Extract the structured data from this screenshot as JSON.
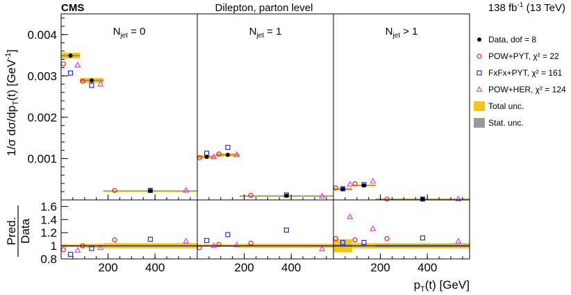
{
  "chart_data": {
    "type": "scatter",
    "header": {
      "experiment": "CMS",
      "title": "Dilepton, parton level",
      "lumi_value": "138 fb",
      "lumi_exp": "-1",
      "energy": "(13 TeV)"
    },
    "ylabel_main": "1/σ dσ/dp_T(t) [GeV^-1]",
    "ylabel_ratio": "Pred./Data",
    "ylabel_ratio_num": "Pred.",
    "ylabel_ratio_den": "Data",
    "xlabel": "p_T(t) [GeV]",
    "xlabel_main": "p",
    "xlabel_sub": "T",
    "xlabel_rest": "(t) [GeV]",
    "ylabel_parts": {
      "pre": "1/σ dσ/dp",
      "sub": "T",
      "mid": "(t) [GeV",
      "sup": "-1",
      "post": "]"
    },
    "main_ylim": [
      0,
      0.0045
    ],
    "main_yticks": [
      0.001,
      0.002,
      0.003,
      0.004
    ],
    "main_ytick_labels": [
      "0.001",
      "0.002",
      "0.003",
      "0.004"
    ],
    "ratio_ylim": [
      0.8,
      1.7
    ],
    "ratio_yticks": [
      0.8,
      1.0,
      1.2,
      1.4,
      1.6
    ],
    "ratio_ytick_labels": [
      "0.8",
      "1",
      "1.2",
      "1.4",
      "1.6"
    ],
    "xlim": [
      0,
      580
    ],
    "xticks": [
      200,
      400
    ],
    "xtick_labels": [
      "200",
      "400"
    ],
    "panels": [
      {
        "label": "N",
        "label_sub": "jet",
        "label_rest": " = 0",
        "bins": [
          [
            0,
            80
          ],
          [
            80,
            180
          ],
          [
            180,
            580
          ]
        ],
        "data": [
          0.00349,
          0.00289,
          0.00022
        ],
        "total_unc": [
          7e-05,
          6e-05,
          6e-06
        ],
        "stat_unc": [
          2e-05,
          2e-05,
          2e-06
        ],
        "powpyt": [
          0.00329,
          0.00287,
          0.00023
        ],
        "fxfxpyt": [
          0.00307,
          0.00277,
          0.00023
        ],
        "powher": [
          0.00326,
          0.0028,
          0.00023
        ],
        "ratio_powpyt": [
          0.94,
          1.0,
          1.09
        ],
        "ratio_fxfxpyt": [
          0.87,
          0.96,
          1.1
        ],
        "ratio_powher": [
          0.93,
          0.97,
          1.07
        ],
        "ratio_total_unc": [
          0.02,
          0.03,
          0.04
        ],
        "ratio_stat_unc": [
          0.005,
          0.005,
          0.01
        ]
      },
      {
        "label": "N",
        "label_sub": "jet",
        "label_rest": " = 1",
        "bins": [
          [
            0,
            80
          ],
          [
            80,
            180
          ],
          [
            180,
            580
          ]
        ],
        "data": [
          0.00104,
          0.00109,
          0.0001
        ],
        "total_unc": [
          4e-05,
          4e-05,
          4e-06
        ],
        "stat_unc": [
          1e-05,
          1e-05,
          2e-06
        ],
        "powpyt": [
          0.00102,
          0.00111,
          0.00011
        ],
        "fxfxpyt": [
          0.00113,
          0.00127,
          0.00012
        ],
        "powher": [
          0.00104,
          0.00109,
          9e-05
        ],
        "ratio_powpyt": [
          0.97,
          1.02,
          1.04
        ],
        "ratio_fxfxpyt": [
          1.08,
          1.17,
          1.24
        ],
        "ratio_powher": [
          1.0,
          1.01,
          0.95
        ],
        "ratio_total_unc": [
          0.02,
          0.02,
          0.03
        ],
        "ratio_stat_unc": [
          0.005,
          0.005,
          0.01
        ]
      },
      {
        "label": "N",
        "label_sub": "jet",
        "label_rest": " > 1",
        "bins": [
          [
            0,
            80
          ],
          [
            80,
            180
          ],
          [
            180,
            580
          ]
        ],
        "data": [
          0.00026,
          0.00035,
          2e-05
        ],
        "total_unc": [
          3e-05,
          2e-05,
          3e-06
        ],
        "stat_unc": [
          1e-05,
          1e-05,
          2e-06
        ],
        "powpyt": [
          0.00029,
          0.00039,
          2e-05
        ],
        "fxfxpyt": [
          0.00027,
          0.00037,
          2e-05
        ],
        "powher": [
          0.00038,
          0.00045,
          2e-05
        ],
        "ratio_powpyt": [
          1.11,
          1.09,
          1.11
        ],
        "ratio_fxfxpyt": [
          1.05,
          1.05,
          1.12
        ],
        "ratio_powher": [
          1.44,
          1.26,
          1.07
        ],
        "ratio_total_unc": [
          0.1,
          0.04,
          0.04
        ],
        "ratio_stat_unc": [
          0.02,
          0.01,
          0.02
        ]
      }
    ],
    "legend": [
      {
        "label": "Data, dof = 8",
        "marker": "dot"
      },
      {
        "label": "POW+PYT, χ² = 22",
        "marker": "circle"
      },
      {
        "label": "FxFx+PYT, χ² = 161",
        "marker": "square"
      },
      {
        "label": "POW+HER, χ² = 124",
        "marker": "triangle"
      },
      {
        "label": "Total unc.",
        "marker": "box-yellow"
      },
      {
        "label": "Stat. unc.",
        "marker": "box-gray"
      }
    ],
    "colors": {
      "data": "#000000",
      "powpyt": "#e8202a",
      "fxfxpyt": "#2a2ae0",
      "powher": "#e040e8",
      "total_unc": "#f5c518",
      "stat_unc": "#9a9a9a",
      "data_bar": "#a08850"
    }
  }
}
